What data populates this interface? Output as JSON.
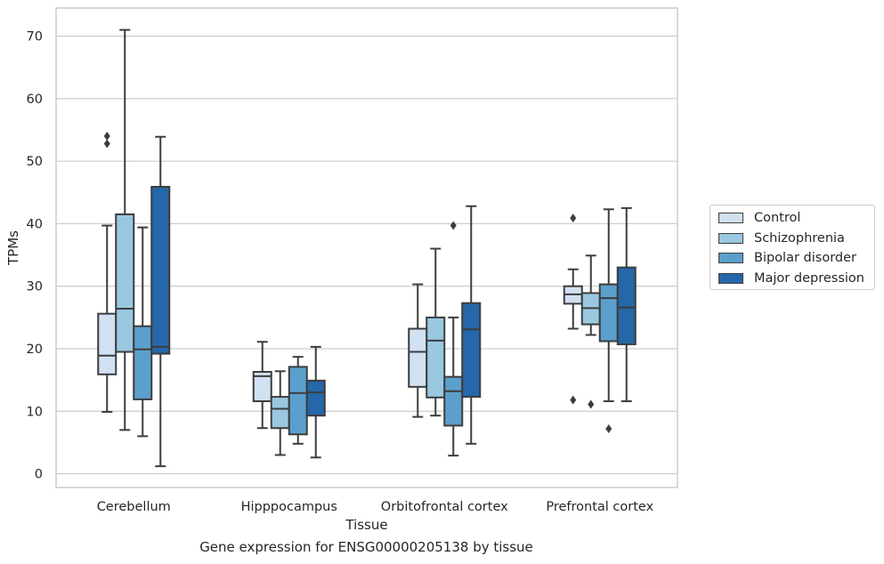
{
  "caption": "Gene expression for ENSG00000205138 by tissue",
  "chart_data": {
    "type": "box",
    "xlabel": "Tissue",
    "ylabel": "TPMs",
    "ylim": [
      -2.2,
      74.5
    ],
    "yticks": [
      0,
      10,
      20,
      30,
      40,
      50,
      60,
      70
    ],
    "grid": "horizontal",
    "legend_position": "right",
    "categories": [
      "Cerebellum",
      "Hipppocampus",
      "Orbitofrontal cortex",
      "Prefrontal cortex"
    ],
    "series": [
      {
        "name": "Control",
        "color": "#d0e1f2",
        "boxes": [
          {
            "whislo": 9.9,
            "q1": 15.9,
            "med": 18.9,
            "q3": 25.6,
            "whishi": 39.7,
            "fliers": [
              52.8,
              54.0
            ]
          },
          {
            "whislo": 7.3,
            "q1": 11.6,
            "med": 15.6,
            "q3": 16.3,
            "whishi": 21.1,
            "fliers": []
          },
          {
            "whislo": 9.1,
            "q1": 13.9,
            "med": 19.5,
            "q3": 23.2,
            "whishi": 30.3,
            "fliers": []
          },
          {
            "whislo": 23.2,
            "q1": 27.2,
            "med": 28.7,
            "q3": 30.0,
            "whishi": 32.7,
            "fliers": [
              11.8,
              40.9
            ]
          }
        ]
      },
      {
        "name": "Schizophrenia",
        "color": "#9ac8e0",
        "boxes": [
          {
            "whislo": 7.0,
            "q1": 19.5,
            "med": 26.4,
            "q3": 41.5,
            "whishi": 71.0,
            "fliers": []
          },
          {
            "whislo": 3.0,
            "q1": 7.3,
            "med": 10.4,
            "q3": 12.3,
            "whishi": 16.4,
            "fliers": []
          },
          {
            "whislo": 9.3,
            "q1": 12.2,
            "med": 21.3,
            "q3": 25.0,
            "whishi": 36.0,
            "fliers": []
          },
          {
            "whislo": 22.2,
            "q1": 23.9,
            "med": 26.5,
            "q3": 28.9,
            "whishi": 34.9,
            "fliers": [
              11.1
            ]
          }
        ]
      },
      {
        "name": "Bipolar disorder",
        "color": "#5b9fcc",
        "boxes": [
          {
            "whislo": 6.0,
            "q1": 11.9,
            "med": 19.9,
            "q3": 23.6,
            "whishi": 39.4,
            "fliers": []
          },
          {
            "whislo": 4.8,
            "q1": 6.3,
            "med": 12.9,
            "q3": 17.1,
            "whishi": 18.7,
            "fliers": []
          },
          {
            "whislo": 2.9,
            "q1": 7.7,
            "med": 13.2,
            "q3": 15.5,
            "whishi": 25.0,
            "fliers": [
              39.7
            ]
          },
          {
            "whislo": 11.6,
            "q1": 21.2,
            "med": 28.1,
            "q3": 30.3,
            "whishi": 42.3,
            "fliers": [
              7.2
            ]
          }
        ]
      },
      {
        "name": "Major depression",
        "color": "#2567a8",
        "boxes": [
          {
            "whislo": 1.2,
            "q1": 19.2,
            "med": 20.3,
            "q3": 45.9,
            "whishi": 53.9,
            "fliers": []
          },
          {
            "whislo": 2.6,
            "q1": 9.3,
            "med": 13.0,
            "q3": 14.9,
            "whishi": 20.3,
            "fliers": []
          },
          {
            "whislo": 4.8,
            "q1": 12.3,
            "med": 23.1,
            "q3": 27.3,
            "whishi": 42.8,
            "fliers": []
          },
          {
            "whislo": 11.6,
            "q1": 20.7,
            "med": 26.6,
            "q3": 33.0,
            "whishi": 42.5,
            "fliers": []
          }
        ]
      }
    ]
  }
}
